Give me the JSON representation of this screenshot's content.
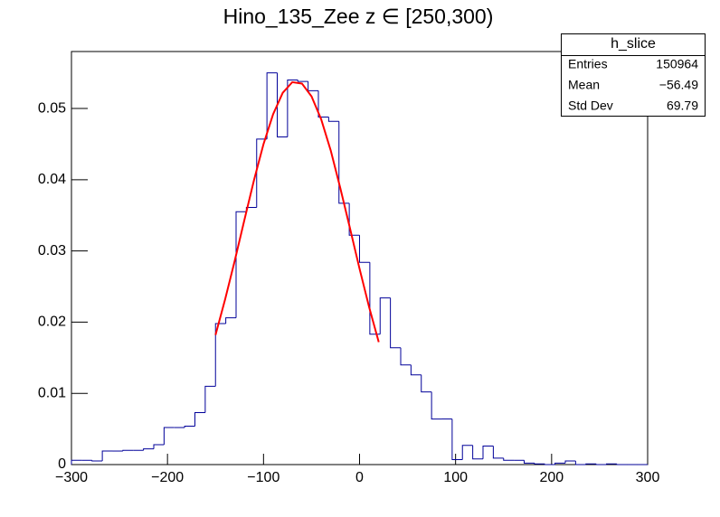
{
  "chart_data": {
    "type": "histogram",
    "title": "Hino_135_Zee z  ∈ [250,300)",
    "bins": [
      -300,
      -289.29,
      -278.57,
      -267.86,
      -257.14,
      -246.43,
      -235.71,
      -225,
      -214.29,
      -203.57,
      -192.86,
      -182.14,
      -171.43,
      -160.71,
      -150,
      -139.29,
      -128.57,
      -117.86,
      -107.14,
      -96.43,
      -85.71,
      -75,
      -64.29,
      -53.57,
      -42.86,
      -32.14,
      -21.43,
      -10.71,
      0,
      10.71,
      21.43,
      32.14,
      42.86,
      53.57,
      64.29,
      75,
      85.71,
      96.43,
      107.14,
      117.86,
      128.57,
      139.29,
      150,
      160.71,
      171.43,
      182.14,
      192.86,
      203.57,
      214.29,
      225,
      235.71,
      246.43,
      257.14,
      267.86,
      278.57,
      289.29,
      300
    ],
    "values": [
      0.0006,
      0.0006,
      0.0005,
      0.0019,
      0.0019,
      0.002,
      0.002,
      0.0022,
      0.0028,
      0.0052,
      0.0052,
      0.0054,
      0.0073,
      0.011,
      0.0198,
      0.0206,
      0.0355,
      0.0361,
      0.0457,
      0.055,
      0.046,
      0.054,
      0.0538,
      0.0525,
      0.0488,
      0.0482,
      0.0367,
      0.0322,
      0.0284,
      0.0183,
      0.0234,
      0.0164,
      0.014,
      0.0126,
      0.0102,
      0.0064,
      0.0064,
      0.0007,
      0.0027,
      0.0008,
      0.0026,
      0.0009,
      0.0006,
      0.0006,
      0.0002,
      0.0001,
      0,
      0.0002,
      0.0005,
      0,
      0.0001,
      0,
      0.0001,
      0,
      0,
      0
    ],
    "color": "#000099",
    "fit": {
      "color": "#ff0000",
      "x": [
        -150,
        -140,
        -130,
        -120,
        -110,
        -100,
        -90,
        -80,
        -70,
        -60,
        -50,
        -40,
        -30,
        -20,
        -10,
        0,
        10,
        20
      ],
      "values": [
        0.0182,
        0.0232,
        0.0286,
        0.0343,
        0.0399,
        0.045,
        0.0492,
        0.0522,
        0.0537,
        0.0535,
        0.0517,
        0.0485,
        0.0441,
        0.0388,
        0.0332,
        0.0275,
        0.0221,
        0.0172
      ]
    },
    "xlim": [
      -300,
      300
    ],
    "xticks": [
      {
        "value": -300,
        "label": "−300"
      },
      {
        "value": -200,
        "label": "−200"
      },
      {
        "value": -100,
        "label": "−100"
      },
      0,
      100,
      200,
      300
    ],
    "ylim": [
      0,
      0.058
    ],
    "yticks": [
      0,
      0.01,
      0.02,
      0.03,
      0.04,
      0.05
    ],
    "stats": {
      "title": "h_slice",
      "rows": [
        [
          "Entries",
          "150964"
        ],
        [
          "Mean",
          "−56.49"
        ],
        [
          "Std Dev",
          "69.79"
        ]
      ]
    }
  }
}
